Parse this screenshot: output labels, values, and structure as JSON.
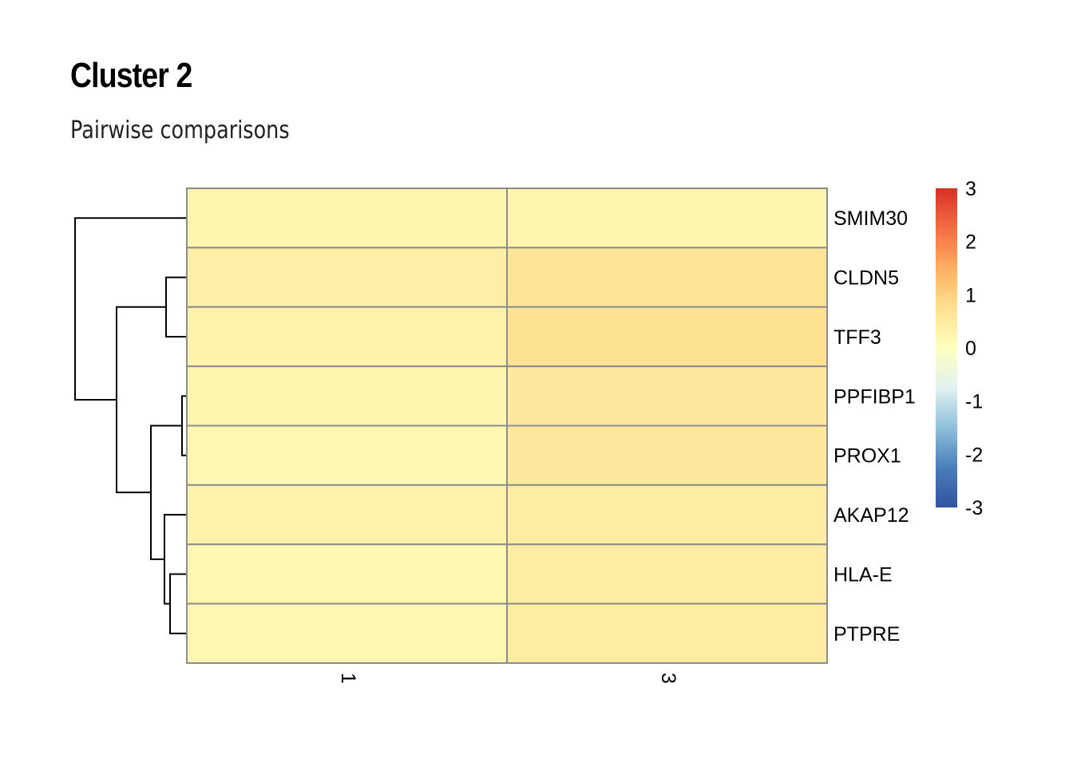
{
  "header": {
    "title": "Cluster 2",
    "subtitle": "Pairwise comparisons"
  },
  "chart_data": {
    "type": "heatmap",
    "title": "Cluster 2",
    "subtitle": "Pairwise comparisons",
    "columns": [
      "1",
      "3"
    ],
    "rows": [
      "SMIM30",
      "CLDN5",
      "TFF3",
      "PPFIBP1",
      "PROX1",
      "AKAP12",
      "HLA-E",
      "PTPRE"
    ],
    "values": [
      [
        0.25,
        0.25
      ],
      [
        0.4,
        0.65
      ],
      [
        0.3,
        0.7
      ],
      [
        0.25,
        0.55
      ],
      [
        0.2,
        0.55
      ],
      [
        0.3,
        0.45
      ],
      [
        0.2,
        0.45
      ],
      [
        0.2,
        0.45
      ]
    ],
    "color_scale": {
      "min": -3,
      "max": 3,
      "ticks": [
        "3",
        "2",
        "1",
        "0",
        "-1",
        "-2",
        "-3"
      ],
      "colors": [
        "#3153a2",
        "#4a7eb8",
        "#8ec0db",
        "#e2f2f0",
        "#ffffbf",
        "#fee090",
        "#fdae61",
        "#f46d43",
        "#d73027"
      ]
    },
    "cell_border_color": "#8c8c8c",
    "dendrogram": "rows"
  }
}
